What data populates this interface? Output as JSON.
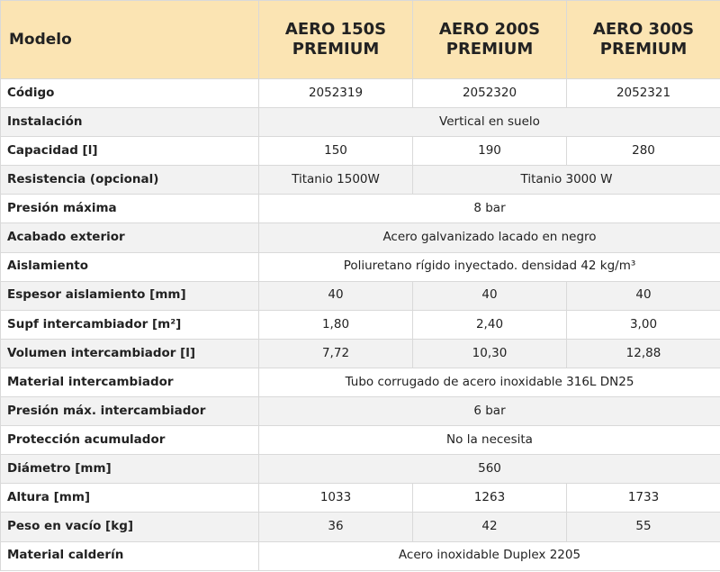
{
  "header": {
    "modelo_label": "Modelo",
    "models": [
      {
        "line1": "AERO 150S",
        "line2": "PREMIUM"
      },
      {
        "line1": "AERO 200S",
        "line2": "PREMIUM"
      },
      {
        "line1": "AERO 300S",
        "line2": "PREMIUM"
      }
    ]
  },
  "rows": {
    "codigo": {
      "label": "Código",
      "v1": "2052319",
      "v2": "2052320",
      "v3": "2052321"
    },
    "instalacion": {
      "label": "Instalación",
      "all": "Vertical en suelo"
    },
    "capacidad": {
      "label": "Capacidad [l]",
      "v1": "150",
      "v2": "190",
      "v3": "280"
    },
    "resistencia": {
      "label": "Resistencia (opcional)",
      "v1": "Titanio  1500W",
      "v23": "Titanio 3000 W"
    },
    "presion_maxima": {
      "label": "Presión máxima",
      "all": "8 bar"
    },
    "acabado_exterior": {
      "label": "Acabado exterior",
      "all": "Acero galvanizado lacado en negro"
    },
    "aislamiento": {
      "label": "Aislamiento",
      "all": "Poliuretano rígido inyectado.  densidad 42 kg/m³"
    },
    "espesor_aislamiento": {
      "label": "Espesor aislamiento [mm]",
      "v1": "40",
      "v2": "40",
      "v3": "40"
    },
    "supf_intercambiador": {
      "label": "Supf  intercambiador [m²]",
      "v1": "1,80",
      "v2": "2,40",
      "v3": "3,00"
    },
    "volumen_intercambiador": {
      "label": "Volumen intercambiador [l]",
      "v1": "7,72",
      "v2": "10,30",
      "v3": "12,88"
    },
    "material_intercambiador": {
      "label": "Material  intercambiador",
      "all": "Tubo corrugado de acero inoxidable 316L DN25"
    },
    "presion_max_intercambiador": {
      "label": "Presión máx. intercambiador",
      "all": "6 bar"
    },
    "proteccion_acumulador": {
      "label": "Protección acumulador",
      "all": "No la necesita"
    },
    "diametro": {
      "label": "Diámetro [mm]",
      "all": "560"
    },
    "altura": {
      "label": "Altura [mm]",
      "v1": "1033",
      "v2": "1263",
      "v3": "1733"
    },
    "peso_en_vacio": {
      "label": "Peso en vacío [kg]",
      "v1": "36",
      "v2": "42",
      "v3": "55"
    },
    "material_calderin": {
      "label": "Material calderín",
      "all": "Acero inoxidable  Duplex 2205"
    }
  }
}
